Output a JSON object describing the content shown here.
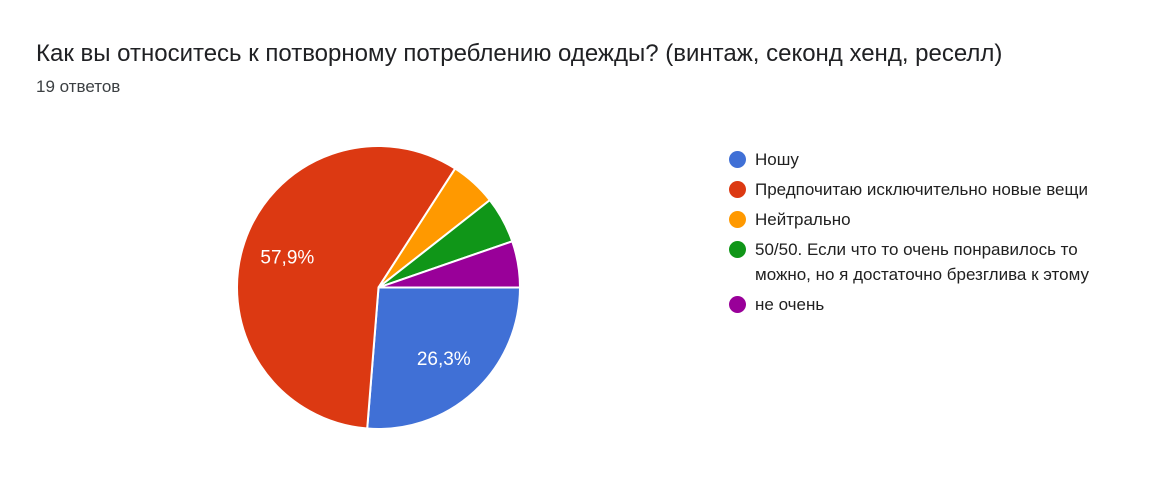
{
  "chart_data": {
    "type": "pie",
    "title": "Как вы относитесь к потворному потреблению одежды? (винтаж, секонд хенд, реселл)",
    "subtitle": "19 ответов",
    "legend_position": "right",
    "start_angle": "3-oclock",
    "direction": "clockwise",
    "slice_label_color": "#ffffff",
    "background_color": "#ffffff",
    "slices": [
      {
        "label": "Ношу",
        "percent": 26.3,
        "value_label": "26,3%",
        "color": "#4070D6"
      },
      {
        "label": "Предпочитаю исключительно новые вещи",
        "percent": 57.9,
        "value_label": "57,9%",
        "color": "#DC3912"
      },
      {
        "label": "Нейтрально",
        "percent": 5.3,
        "value_label": "",
        "color": "#FF9900"
      },
      {
        "label": "50/50. Если что то очень понравилось то можно, но я достаточно брезглива к этому",
        "percent": 5.3,
        "value_label": "",
        "color": "#109618"
      },
      {
        "label": "не очень",
        "percent": 5.3,
        "value_label": "",
        "color": "#990099"
      }
    ]
  }
}
